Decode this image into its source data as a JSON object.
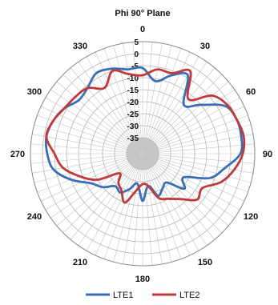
{
  "chart_data": {
    "type": "radar",
    "title": "Phi 90° Plane",
    "angle_ticks": [
      "0",
      "30",
      "60",
      "90",
      "120",
      "150",
      "180",
      "210",
      "240",
      "270",
      "300",
      "330"
    ],
    "radial_ticks": [
      "5",
      "0",
      "-5",
      "-10",
      "-15",
      "-20",
      "-25",
      "-30",
      "-35"
    ],
    "rlim": [
      -40,
      5
    ],
    "grid": true,
    "legend_position": "bottom",
    "series": [
      {
        "name": "LTE1",
        "color": "#3a6fb5",
        "angles": [
          0,
          10,
          20,
          30,
          40,
          50,
          60,
          70,
          80,
          90,
          100,
          110,
          120,
          130,
          140,
          150,
          160,
          170,
          180,
          190,
          200,
          210,
          220,
          230,
          240,
          250,
          260,
          270,
          280,
          290,
          300,
          310,
          320,
          330,
          340,
          350
        ],
        "values": [
          -6,
          -11,
          -7,
          -4,
          -15,
          -10,
          -2,
          0,
          0,
          -1,
          -7,
          -12,
          -22,
          -19,
          -26,
          -25,
          -23,
          -28,
          -22,
          -29,
          -26,
          -23,
          -24,
          -20,
          -17,
          -10,
          -4,
          -2,
          -1,
          -2,
          -4,
          -7,
          -6,
          -3,
          -4,
          -6
        ]
      },
      {
        "name": "LTE2",
        "color": "#c0393b",
        "angles": [
          0,
          10,
          20,
          30,
          40,
          50,
          60,
          70,
          80,
          90,
          100,
          110,
          120,
          130,
          140,
          150,
          160,
          170,
          180,
          190,
          200,
          210,
          220,
          230,
          240,
          250,
          260,
          270,
          280,
          290,
          300,
          310,
          320,
          330,
          340,
          350
        ],
        "values": [
          -9,
          -6,
          -6,
          -2,
          -12,
          -4,
          -1,
          0,
          1,
          0,
          -3,
          -7,
          -13,
          -12,
          -17,
          -20,
          -22,
          -28,
          -29,
          -26,
          -20,
          -24,
          -26,
          -29,
          -20,
          -14,
          -8,
          -5,
          -1,
          -2,
          -4,
          -5,
          -6,
          -10,
          -5,
          -8
        ]
      }
    ]
  }
}
